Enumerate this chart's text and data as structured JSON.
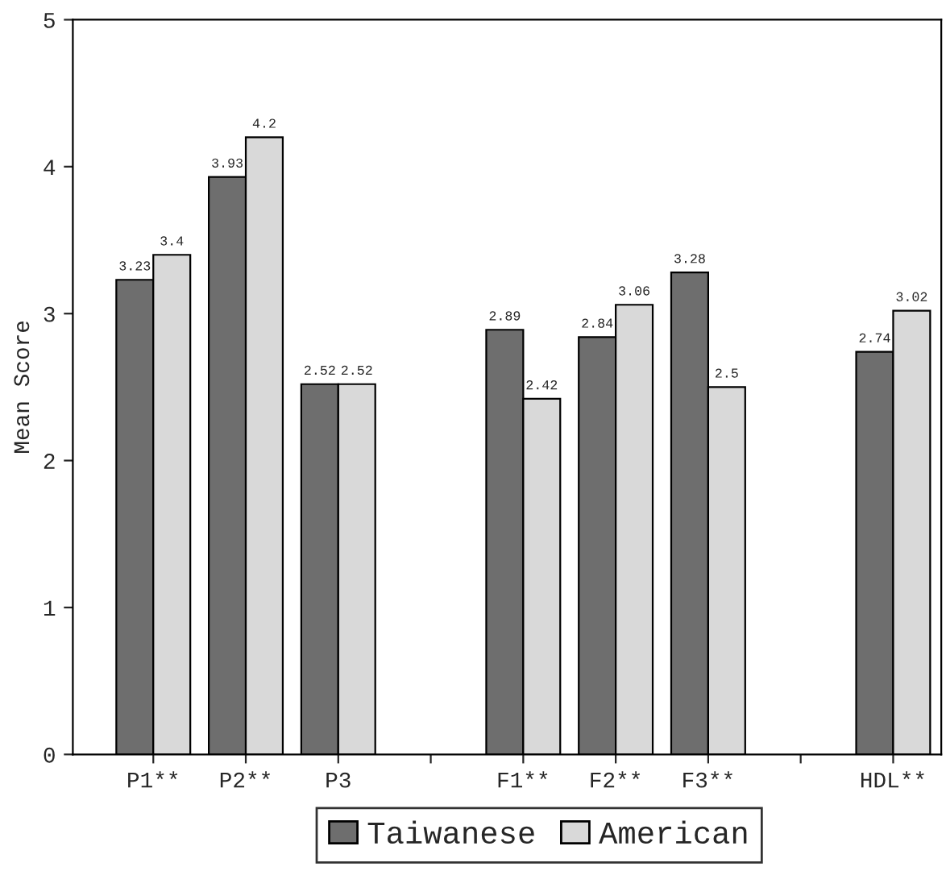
{
  "chart_data": {
    "type": "bar",
    "ylabel": "Mean Score",
    "categories": [
      "P1**",
      "P2**",
      "P3",
      null,
      "F1**",
      "F2**",
      "F3**",
      null,
      "HDL**"
    ],
    "series": [
      {
        "name": "Taiwanese",
        "color": "#6e6e6e",
        "values": [
          3.23,
          3.93,
          2.52,
          null,
          2.89,
          2.84,
          3.28,
          null,
          2.74
        ]
      },
      {
        "name": "American",
        "color": "#d9d9d9",
        "values": [
          3.4,
          4.2,
          2.52,
          null,
          2.42,
          3.06,
          2.5,
          null,
          3.02
        ]
      }
    ],
    "ylim": [
      0,
      5
    ],
    "yticks": [
      0,
      1,
      2,
      3,
      4,
      5
    ],
    "data_labels": true,
    "legend": "bottom",
    "grid": false
  }
}
